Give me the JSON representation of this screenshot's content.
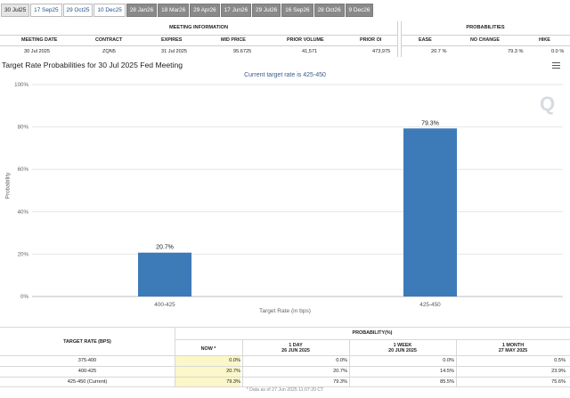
{
  "tabs": [
    {
      "label": "30 Jul25",
      "style": "active"
    },
    {
      "label": "17 Sep25",
      "style": "light"
    },
    {
      "label": "29 Oct25",
      "style": "light"
    },
    {
      "label": "10 Dec25",
      "style": "light"
    },
    {
      "label": "28 Jan26",
      "style": "dark"
    },
    {
      "label": "18 Mar26",
      "style": "dark"
    },
    {
      "label": "29 Apr26",
      "style": "dark"
    },
    {
      "label": "17 Jun26",
      "style": "dark"
    },
    {
      "label": "29 Jul26",
      "style": "dark"
    },
    {
      "label": "16 Sep26",
      "style": "dark"
    },
    {
      "label": "28 Oct26",
      "style": "dark"
    },
    {
      "label": "9 Dec26",
      "style": "dark"
    }
  ],
  "meeting_info": {
    "title": "MEETING INFORMATION",
    "headers": {
      "meeting_date": "MEETING DATE",
      "contract": "CONTRACT",
      "expires": "EXPIRES",
      "mid_price": "MID PRICE",
      "prior_volume": "PRIOR VOLUME",
      "prior_oi": "PRIOR OI"
    },
    "values": {
      "meeting_date": "30 Jul 2025",
      "contract": "ZQN5",
      "expires": "31 Jul 2025",
      "mid_price": "95.6725",
      "prior_volume": "41,571",
      "prior_oi": "473,975"
    }
  },
  "probabilities": {
    "title": "PROBABILITIES",
    "headers": {
      "ease": "EASE",
      "no_change": "NO CHANGE",
      "hike": "HIKE"
    },
    "values": {
      "ease": "20.7 %",
      "no_change": "79.3 %",
      "hike": "0.0 %"
    }
  },
  "chart_data": {
    "type": "bar",
    "title": "Target Rate Probabilities for 30 Jul 2025 Fed Meeting",
    "subtitle": "Current target rate is 425-450",
    "categories": [
      "400-425",
      "425-450"
    ],
    "values": [
      20.7,
      79.3
    ],
    "data_labels": [
      "20.7%",
      "79.3%"
    ],
    "xlabel": "Target Rate (in bps)",
    "ylabel": "Probability",
    "ylim": [
      0,
      100
    ],
    "yticks": [
      0,
      20,
      40,
      60,
      80,
      100
    ],
    "ytick_labels": [
      "0%",
      "20%",
      "40%",
      "60%",
      "80%",
      "100%"
    ],
    "grid": true,
    "bar_color": "#3d7ab8"
  },
  "bottom_table": {
    "header_target": "TARGET RATE (BPS)",
    "header_prob": "PROBABILITY(%)",
    "col_now": "NOW *",
    "col_1day": "1 DAY",
    "col_1day_date": "26 JUN 2025",
    "col_1week": "1 WEEK",
    "col_1week_date": "20 JUN 2025",
    "col_1month": "1 MONTH",
    "col_1month_date": "27 MAY 2025",
    "rows": [
      {
        "rate": "375-400",
        "now": "0.0%",
        "d1": "0.0%",
        "w1": "0.0%",
        "m1": "0.5%"
      },
      {
        "rate": "400-425",
        "now": "20.7%",
        "d1": "20.7%",
        "w1": "14.5%",
        "m1": "23.9%"
      },
      {
        "rate": "425-450 (Current)",
        "now": "79.3%",
        "d1": "79.3%",
        "w1": "85.5%",
        "m1": "75.6%"
      }
    ],
    "footnote": "* Data as of 27 Jun 2025 11:07:20 CT"
  }
}
